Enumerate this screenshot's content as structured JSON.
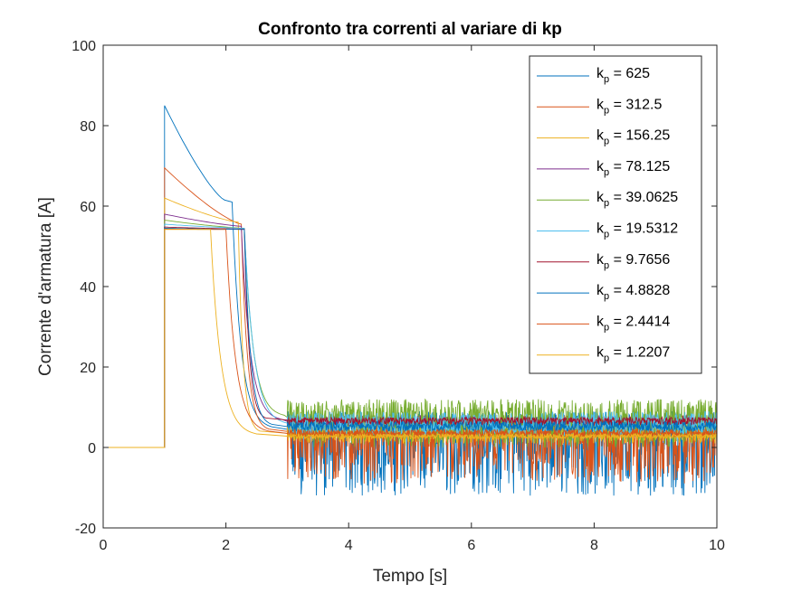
{
  "chart_data": {
    "type": "line",
    "title": "Confronto tra correnti al variare di kp",
    "xlabel": "Tempo [s]",
    "ylabel": "Corrente d'armatura [A]",
    "xlim": [
      0,
      10
    ],
    "ylim": [
      -20,
      100
    ],
    "x_ticks": [
      "0",
      "2",
      "4",
      "6",
      "8",
      "10"
    ],
    "y_ticks": [
      "-20",
      "0",
      "20",
      "40",
      "60",
      "80",
      "100"
    ],
    "grid": false,
    "legend_position": "top-right",
    "step_time": 1,
    "series": [
      {
        "name": "625",
        "color": "#0072BD",
        "peak": 85.0,
        "t_knee": 1.98,
        "knee_value": 61.5,
        "t_drop_start": 2.1,
        "t_steady": 2.75,
        "steady_mean": 4.5,
        "noise_low": -12,
        "noise_high": 9
      },
      {
        "name": "312.5",
        "color": "#D95319",
        "peak": 69.5,
        "t_knee": 2.25,
        "knee_value": 55.5,
        "t_drop_start": 2.25,
        "t_steady": 2.7,
        "steady_mean": 4.0,
        "noise_low": -9,
        "noise_high": 8
      },
      {
        "name": "156.25",
        "color": "#EDB120",
        "peak": 62.0,
        "t_knee": 2.2,
        "knee_value": 56.0,
        "t_drop_start": 2.2,
        "t_steady": 2.55,
        "steady_mean": 3.5,
        "noise_low": 1,
        "noise_high": 6
      },
      {
        "name": "78.125",
        "color": "#7E2F8E",
        "peak": 58.0,
        "t_knee": 2.25,
        "knee_value": 55.0,
        "t_drop_start": 2.25,
        "t_steady": 2.9,
        "steady_mean": 6.5,
        "noise_low": 5,
        "noise_high": 8
      },
      {
        "name": "39.0625",
        "color": "#77AC30",
        "peak": 56.5,
        "t_knee": 2.3,
        "knee_value": 54.5,
        "t_drop_start": 2.3,
        "t_steady": 2.95,
        "steady_mean": 7.5,
        "noise_low": 0,
        "noise_high": 12
      },
      {
        "name": "19.5312",
        "color": "#4DBEEE",
        "peak": 55.5,
        "t_knee": 2.3,
        "knee_value": 54.5,
        "t_drop_start": 2.3,
        "t_steady": 3.0,
        "steady_mean": 5.5,
        "noise_low": 3,
        "noise_high": 9
      },
      {
        "name": "9.7656",
        "color": "#A2142F",
        "peak": 54.8,
        "t_knee": 2.3,
        "knee_value": 54.3,
        "t_drop_start": 2.3,
        "t_steady": 2.65,
        "steady_mean": 6.8,
        "noise_low": 5.5,
        "noise_high": 7.5
      },
      {
        "name": "4.8828",
        "color": "#0072BD",
        "peak": 54.5,
        "t_knee": 2.3,
        "knee_value": 54.2,
        "t_drop_start": 2.3,
        "t_steady": 2.75,
        "steady_mean": 5.2,
        "noise_low": 4,
        "noise_high": 6.5
      },
      {
        "name": "2.4414",
        "color": "#D95319",
        "peak": 54.3,
        "t_knee": 2.0,
        "knee_value": 54.2,
        "t_drop_start": 2.0,
        "t_steady": 2.7,
        "steady_mean": 3.5,
        "noise_low": 2.5,
        "noise_high": 4.5
      },
      {
        "name": "1.2207",
        "color": "#EDB120",
        "peak": 54.2,
        "t_knee": 1.75,
        "knee_value": 54.2,
        "t_drop_start": 1.75,
        "t_steady": 2.5,
        "steady_mean": 2.8,
        "noise_low": 2.2,
        "noise_high": 3.4
      }
    ]
  },
  "legend": {
    "symbol": "k",
    "subscript": "p",
    "separator": " = "
  }
}
